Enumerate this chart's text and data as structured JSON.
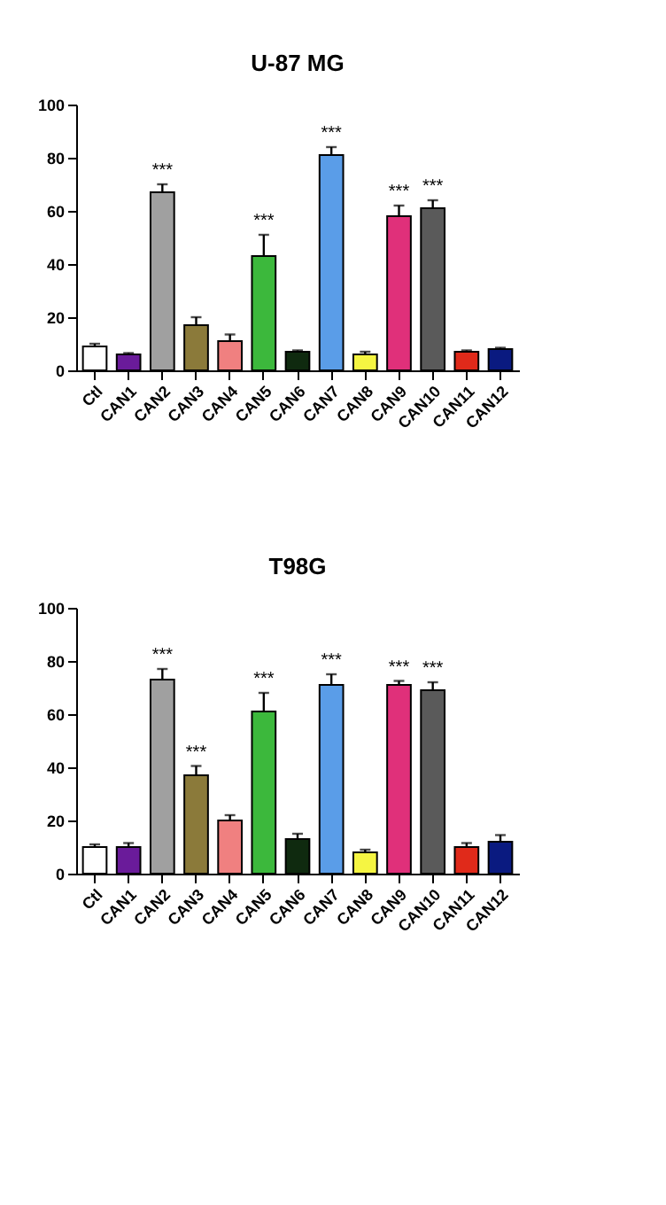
{
  "chart_data": [
    {
      "type": "bar",
      "title": "U-87 MG",
      "categories": [
        "Ctl",
        "CAN1",
        "CAN2",
        "CAN3",
        "CAN4",
        "CAN5",
        "CAN6",
        "CAN7",
        "CAN8",
        "CAN9",
        "CAN10",
        "CAN11",
        "CAN12"
      ],
      "values": [
        9,
        6,
        67,
        17,
        11,
        43,
        7,
        81,
        6,
        58,
        61,
        7,
        8
      ],
      "errors": [
        1,
        0.5,
        3,
        3,
        2.5,
        8,
        0.5,
        3,
        1,
        4,
        3,
        0.5,
        0.5
      ],
      "colors": [
        "#ffffff",
        "#6a1b9a",
        "#a0a0a0",
        "#8b7a3a",
        "#f08080",
        "#3cb83c",
        "#0f2a0f",
        "#5a9de8",
        "#f5f542",
        "#e0307a",
        "#5a5a5a",
        "#e02a1a",
        "#0a1a80"
      ],
      "ylim": [
        0,
        100
      ],
      "yticks": [
        0,
        20,
        40,
        60,
        80,
        100
      ],
      "value_labels": [
        null,
        null,
        "***",
        null,
        null,
        "***",
        null,
        "***",
        null,
        "***",
        "***",
        null,
        null
      ]
    },
    {
      "type": "bar",
      "title": "T98G",
      "categories": [
        "Ctl",
        "CAN1",
        "CAN2",
        "CAN3",
        "CAN4",
        "CAN5",
        "CAN6",
        "CAN7",
        "CAN8",
        "CAN9",
        "CAN10",
        "CAN11",
        "CAN12"
      ],
      "values": [
        10,
        10,
        73,
        37,
        20,
        61,
        13,
        71,
        8,
        71,
        69,
        10,
        12
      ],
      "errors": [
        1,
        1.5,
        4,
        3.5,
        2,
        7,
        2,
        4,
        1,
        1.5,
        3,
        1.5,
        2.5
      ],
      "colors": [
        "#ffffff",
        "#6a1b9a",
        "#a0a0a0",
        "#8b7a3a",
        "#f08080",
        "#3cb83c",
        "#0f2a0f",
        "#5a9de8",
        "#f5f542",
        "#e0307a",
        "#5a5a5a",
        "#e02a1a",
        "#0a1a80"
      ],
      "ylim": [
        0,
        100
      ],
      "yticks": [
        0,
        20,
        40,
        60,
        80,
        100
      ],
      "value_labels": [
        null,
        null,
        "***",
        "***",
        null,
        "***",
        null,
        "***",
        null,
        "***",
        "***",
        null,
        null
      ]
    }
  ]
}
